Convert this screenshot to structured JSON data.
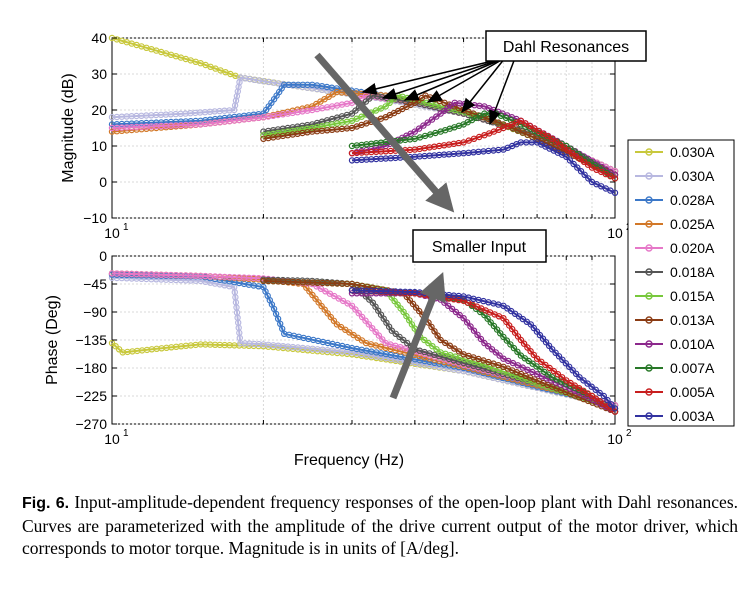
{
  "figure": {
    "caption_label": "Fig. 6.",
    "caption_text": "Input-amplitude-dependent frequency responses of the open-loop plant with Dahl resonances. Curves are parameterized with the amplitude of the drive current output of the motor driver, which corresponds to motor torque. Magnitude is in units of [A/deg]."
  },
  "annotations": {
    "dahl": "Dahl Resonances",
    "smaller": "Smaller Input"
  },
  "chart_data": [
    {
      "type": "line",
      "panel": "magnitude",
      "xscale": "log",
      "xlim": [
        10,
        100
      ],
      "ylim": [
        -10,
        40
      ],
      "ylabel": "Magnitude (dB)",
      "xlabel": "",
      "yticks": [
        40,
        30,
        20,
        10,
        0,
        -10
      ],
      "xtick_labels": [
        {
          "base": "10",
          "exp": "1"
        },
        {
          "base": "10",
          "exp": "2"
        }
      ],
      "grid": true,
      "legend": "right",
      "series": [
        {
          "name": "0.030A",
          "color": "#c8c83c",
          "x": [
            10,
            15,
            18,
            25,
            35,
            50,
            70,
            100
          ],
          "y": [
            40,
            33,
            29,
            26,
            23,
            19,
            13,
            3
          ]
        },
        {
          "name": "0.030A",
          "color": "#b8b8e0",
          "x": [
            10,
            14,
            17.5,
            18,
            20,
            25,
            35,
            50,
            70,
            100
          ],
          "y": [
            18,
            19,
            20,
            29,
            28,
            26,
            23,
            19,
            13,
            3
          ]
        },
        {
          "name": "0.028A",
          "color": "#3c78c8",
          "x": [
            10,
            15,
            20,
            21,
            22,
            25,
            35,
            50,
            70,
            100
          ],
          "y": [
            16,
            17,
            19,
            23,
            27,
            27,
            24,
            19,
            13,
            3
          ]
        },
        {
          "name": "0.025A",
          "color": "#d27828",
          "x": [
            10,
            15,
            20,
            25,
            28,
            35,
            50,
            70,
            100
          ],
          "y": [
            14,
            16,
            18,
            21,
            25,
            24,
            19,
            13,
            3
          ]
        },
        {
          "name": "0.020A",
          "color": "#e678c8",
          "x": [
            10,
            15,
            20,
            25,
            30,
            32,
            40,
            50,
            70,
            100
          ],
          "y": [
            15,
            16,
            18,
            20,
            22,
            24,
            22,
            19,
            13,
            3
          ]
        },
        {
          "name": "0.018A",
          "color": "#555555",
          "x": [
            20,
            25,
            30,
            33,
            40,
            50,
            70,
            100
          ],
          "y": [
            14,
            16,
            19,
            24,
            22,
            19,
            13,
            2
          ]
        },
        {
          "name": "0.015A",
          "color": "#78c83c",
          "x": [
            20,
            25,
            30,
            35,
            37,
            45,
            55,
            70,
            100
          ],
          "y": [
            13,
            15,
            17,
            21,
            24,
            21,
            18,
            12,
            2
          ]
        },
        {
          "name": "0.013A",
          "color": "#8b3c14",
          "x": [
            20,
            25,
            30,
            35,
            40,
            42,
            50,
            60,
            70,
            100
          ],
          "y": [
            12,
            14,
            15,
            18,
            22,
            24,
            20,
            16,
            12,
            2
          ]
        },
        {
          "name": "0.010A",
          "color": "#8c288c",
          "x": [
            30,
            35,
            40,
            45,
            48,
            55,
            65,
            80,
            100
          ],
          "y": [
            8,
            10,
            14,
            19,
            22,
            21,
            17,
            10,
            2
          ]
        },
        {
          "name": "0.007A",
          "color": "#287828",
          "x": [
            30,
            40,
            45,
            50,
            55,
            58,
            65,
            80,
            100
          ],
          "y": [
            10,
            12,
            14,
            16,
            19,
            19,
            16,
            10,
            1
          ]
        },
        {
          "name": "0.005A",
          "color": "#c81e1e",
          "x": [
            30,
            40,
            50,
            55,
            60,
            65,
            75,
            90,
            100
          ],
          "y": [
            8,
            9,
            11,
            13,
            15,
            17,
            12,
            4,
            1
          ]
        },
        {
          "name": "0.003A",
          "color": "#3232a0",
          "x": [
            30,
            40,
            50,
            60,
            65,
            70,
            80,
            90,
            100
          ],
          "y": [
            6,
            7,
            8,
            9,
            11,
            11,
            7,
            0,
            -3
          ]
        }
      ]
    },
    {
      "type": "line",
      "panel": "phase",
      "xscale": "log",
      "xlim": [
        10,
        100
      ],
      "ylim": [
        -270,
        0
      ],
      "ylabel": "Phase (Deg)",
      "xlabel": "Frequency (Hz)",
      "yticks": [
        0,
        -45,
        -90,
        -135,
        -180,
        -225,
        -270
      ],
      "xtick_labels": [
        {
          "base": "10",
          "exp": "1"
        },
        {
          "base": "10",
          "exp": "2"
        }
      ],
      "grid": true,
      "series": [
        {
          "name": "0.030A",
          "color": "#c8c83c",
          "x": [
            10,
            10.5,
            12,
            15,
            20,
            30,
            50,
            70,
            100
          ],
          "y": [
            -140,
            -155,
            -150,
            -142,
            -145,
            -158,
            -185,
            -212,
            -240
          ]
        },
        {
          "name": "0.030A",
          "color": "#b8b8e0",
          "x": [
            10,
            15,
            17.5,
            18,
            20,
            30,
            50,
            70,
            100
          ],
          "y": [
            -35,
            -40,
            -50,
            -140,
            -142,
            -155,
            -185,
            -212,
            -240
          ]
        },
        {
          "name": "0.028A",
          "color": "#3c78c8",
          "x": [
            10,
            15,
            20,
            21,
            22,
            30,
            50,
            70,
            100
          ],
          "y": [
            -30,
            -33,
            -50,
            -85,
            -125,
            -148,
            -180,
            -210,
            -240
          ]
        },
        {
          "name": "0.025A",
          "color": "#d27828",
          "x": [
            10,
            15,
            20,
            24,
            28,
            32,
            50,
            70,
            100
          ],
          "y": [
            -28,
            -32,
            -38,
            -45,
            -110,
            -140,
            -178,
            -208,
            -240
          ]
        },
        {
          "name": "0.020A",
          "color": "#e678c8",
          "x": [
            10,
            15,
            20,
            25,
            30,
            35,
            50,
            70,
            100
          ],
          "y": [
            -28,
            -32,
            -36,
            -45,
            -80,
            -140,
            -175,
            -205,
            -240
          ]
        },
        {
          "name": "0.018A",
          "color": "#555555",
          "x": [
            20,
            25,
            30,
            33,
            36,
            40,
            50,
            70,
            100
          ],
          "y": [
            -38,
            -40,
            -45,
            -75,
            -120,
            -150,
            -172,
            -205,
            -245
          ]
        },
        {
          "name": "0.015A",
          "color": "#78c83c",
          "x": [
            20,
            30,
            35,
            38,
            41,
            45,
            55,
            70,
            100
          ],
          "y": [
            -40,
            -45,
            -55,
            -90,
            -130,
            -155,
            -175,
            -205,
            -245
          ]
        },
        {
          "name": "0.013A",
          "color": "#8b3c14",
          "x": [
            20,
            30,
            38,
            42,
            45,
            50,
            60,
            75,
            100
          ],
          "y": [
            -40,
            -45,
            -60,
            -100,
            -135,
            -158,
            -178,
            -210,
            -250
          ]
        },
        {
          "name": "0.010A",
          "color": "#8c288c",
          "x": [
            30,
            40,
            45,
            50,
            55,
            60,
            70,
            85,
            100
          ],
          "y": [
            -60,
            -60,
            -70,
            -100,
            -140,
            -165,
            -190,
            -220,
            -250
          ]
        },
        {
          "name": "0.007A",
          "color": "#287828",
          "x": [
            30,
            40,
            50,
            55,
            60,
            65,
            75,
            90,
            100
          ],
          "y": [
            -55,
            -60,
            -70,
            -95,
            -130,
            -160,
            -195,
            -225,
            -250
          ]
        },
        {
          "name": "0.005A",
          "color": "#c81e1e",
          "x": [
            30,
            40,
            50,
            60,
            65,
            70,
            80,
            90,
            100
          ],
          "y": [
            -55,
            -60,
            -72,
            -100,
            -135,
            -165,
            -200,
            -225,
            -250
          ]
        },
        {
          "name": "0.003A",
          "color": "#3232a0",
          "x": [
            30,
            40,
            50,
            60,
            68,
            75,
            85,
            95,
            100
          ],
          "y": [
            -55,
            -58,
            -65,
            -80,
            -110,
            -150,
            -195,
            -225,
            -245
          ]
        }
      ]
    }
  ]
}
